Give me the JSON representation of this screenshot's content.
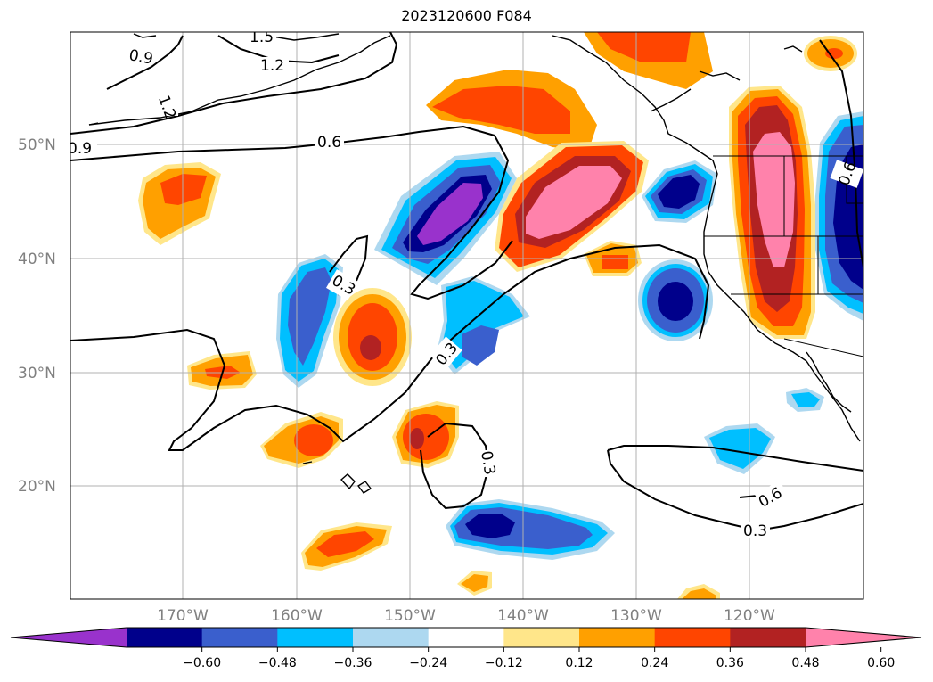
{
  "title": "2023120600 F084",
  "map": {
    "latitude_labels": [
      "50°N",
      "40°N",
      "30°N",
      "20°N"
    ],
    "longitude_labels": [
      "170°W",
      "160°W",
      "150°W",
      "140°W",
      "130°W",
      "120°W"
    ],
    "contour_labels": [
      "1.5",
      "1.2",
      "0.9",
      "1.2",
      "0.9",
      "0.6",
      "0.3",
      "0.3",
      "0.3",
      "0.6",
      "0.3",
      "0.6"
    ],
    "colors": {
      "purple": "#9932cc",
      "navy": "#00008b",
      "royalblue": "#3a5fcd",
      "deepskyblue": "#00bfff",
      "lightblue": "#add8f0",
      "lightyellow": "#ffe68a",
      "orange": "#ffa000",
      "orangered": "#ff4500",
      "firebrick": "#b22222",
      "pink": "#ff82ab"
    }
  },
  "colorbar": {
    "ticks": [
      "−0.60",
      "−0.48",
      "−0.36",
      "−0.24",
      "−0.12",
      "0.12",
      "0.24",
      "0.36",
      "0.48",
      "0.60"
    ],
    "colors": [
      "#9932cc",
      "#00008b",
      "#3a5fcd",
      "#00bfff",
      "#add8f0",
      "#ffffff",
      "#ffe68a",
      "#ffa000",
      "#ff4500",
      "#b22222",
      "#ff82ab"
    ]
  }
}
